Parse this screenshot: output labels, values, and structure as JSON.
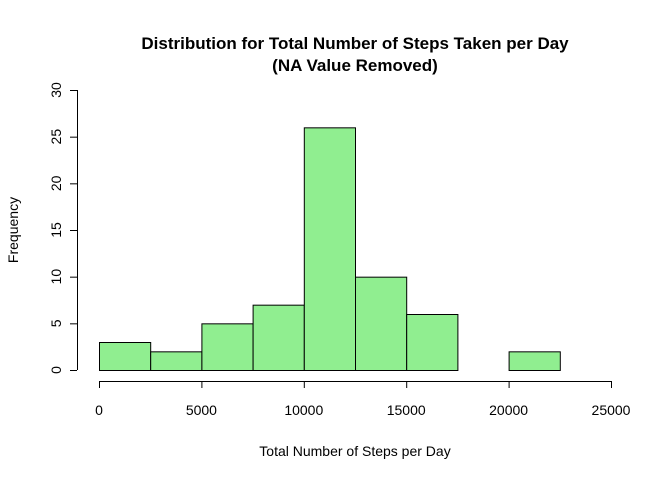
{
  "chart_data": {
    "type": "bar",
    "title": "Distribution for Total Number of Steps Taken per Day",
    "subtitle": "(NA Value Removed)",
    "xlabel": "Total Number of Steps per Day",
    "ylabel": "Frequency",
    "bins": [
      {
        "start": 0,
        "end": 2500,
        "count": 3
      },
      {
        "start": 2500,
        "end": 5000,
        "count": 2
      },
      {
        "start": 5000,
        "end": 7500,
        "count": 5
      },
      {
        "start": 7500,
        "end": 10000,
        "count": 7
      },
      {
        "start": 10000,
        "end": 12500,
        "count": 26
      },
      {
        "start": 12500,
        "end": 15000,
        "count": 10
      },
      {
        "start": 15000,
        "end": 17500,
        "count": 6
      },
      {
        "start": 17500,
        "end": 20000,
        "count": 0
      },
      {
        "start": 20000,
        "end": 22500,
        "count": 2
      },
      {
        "start": 22500,
        "end": 25000,
        "count": 0
      }
    ],
    "xlim": [
      0,
      25000
    ],
    "ylim": [
      0,
      30
    ],
    "xticks": [
      0,
      5000,
      10000,
      15000,
      20000,
      25000
    ],
    "yticks": [
      0,
      5,
      10,
      15,
      20,
      25,
      30
    ],
    "bar_color": "#90ee90",
    "border_color": "#000000",
    "grid": false
  }
}
